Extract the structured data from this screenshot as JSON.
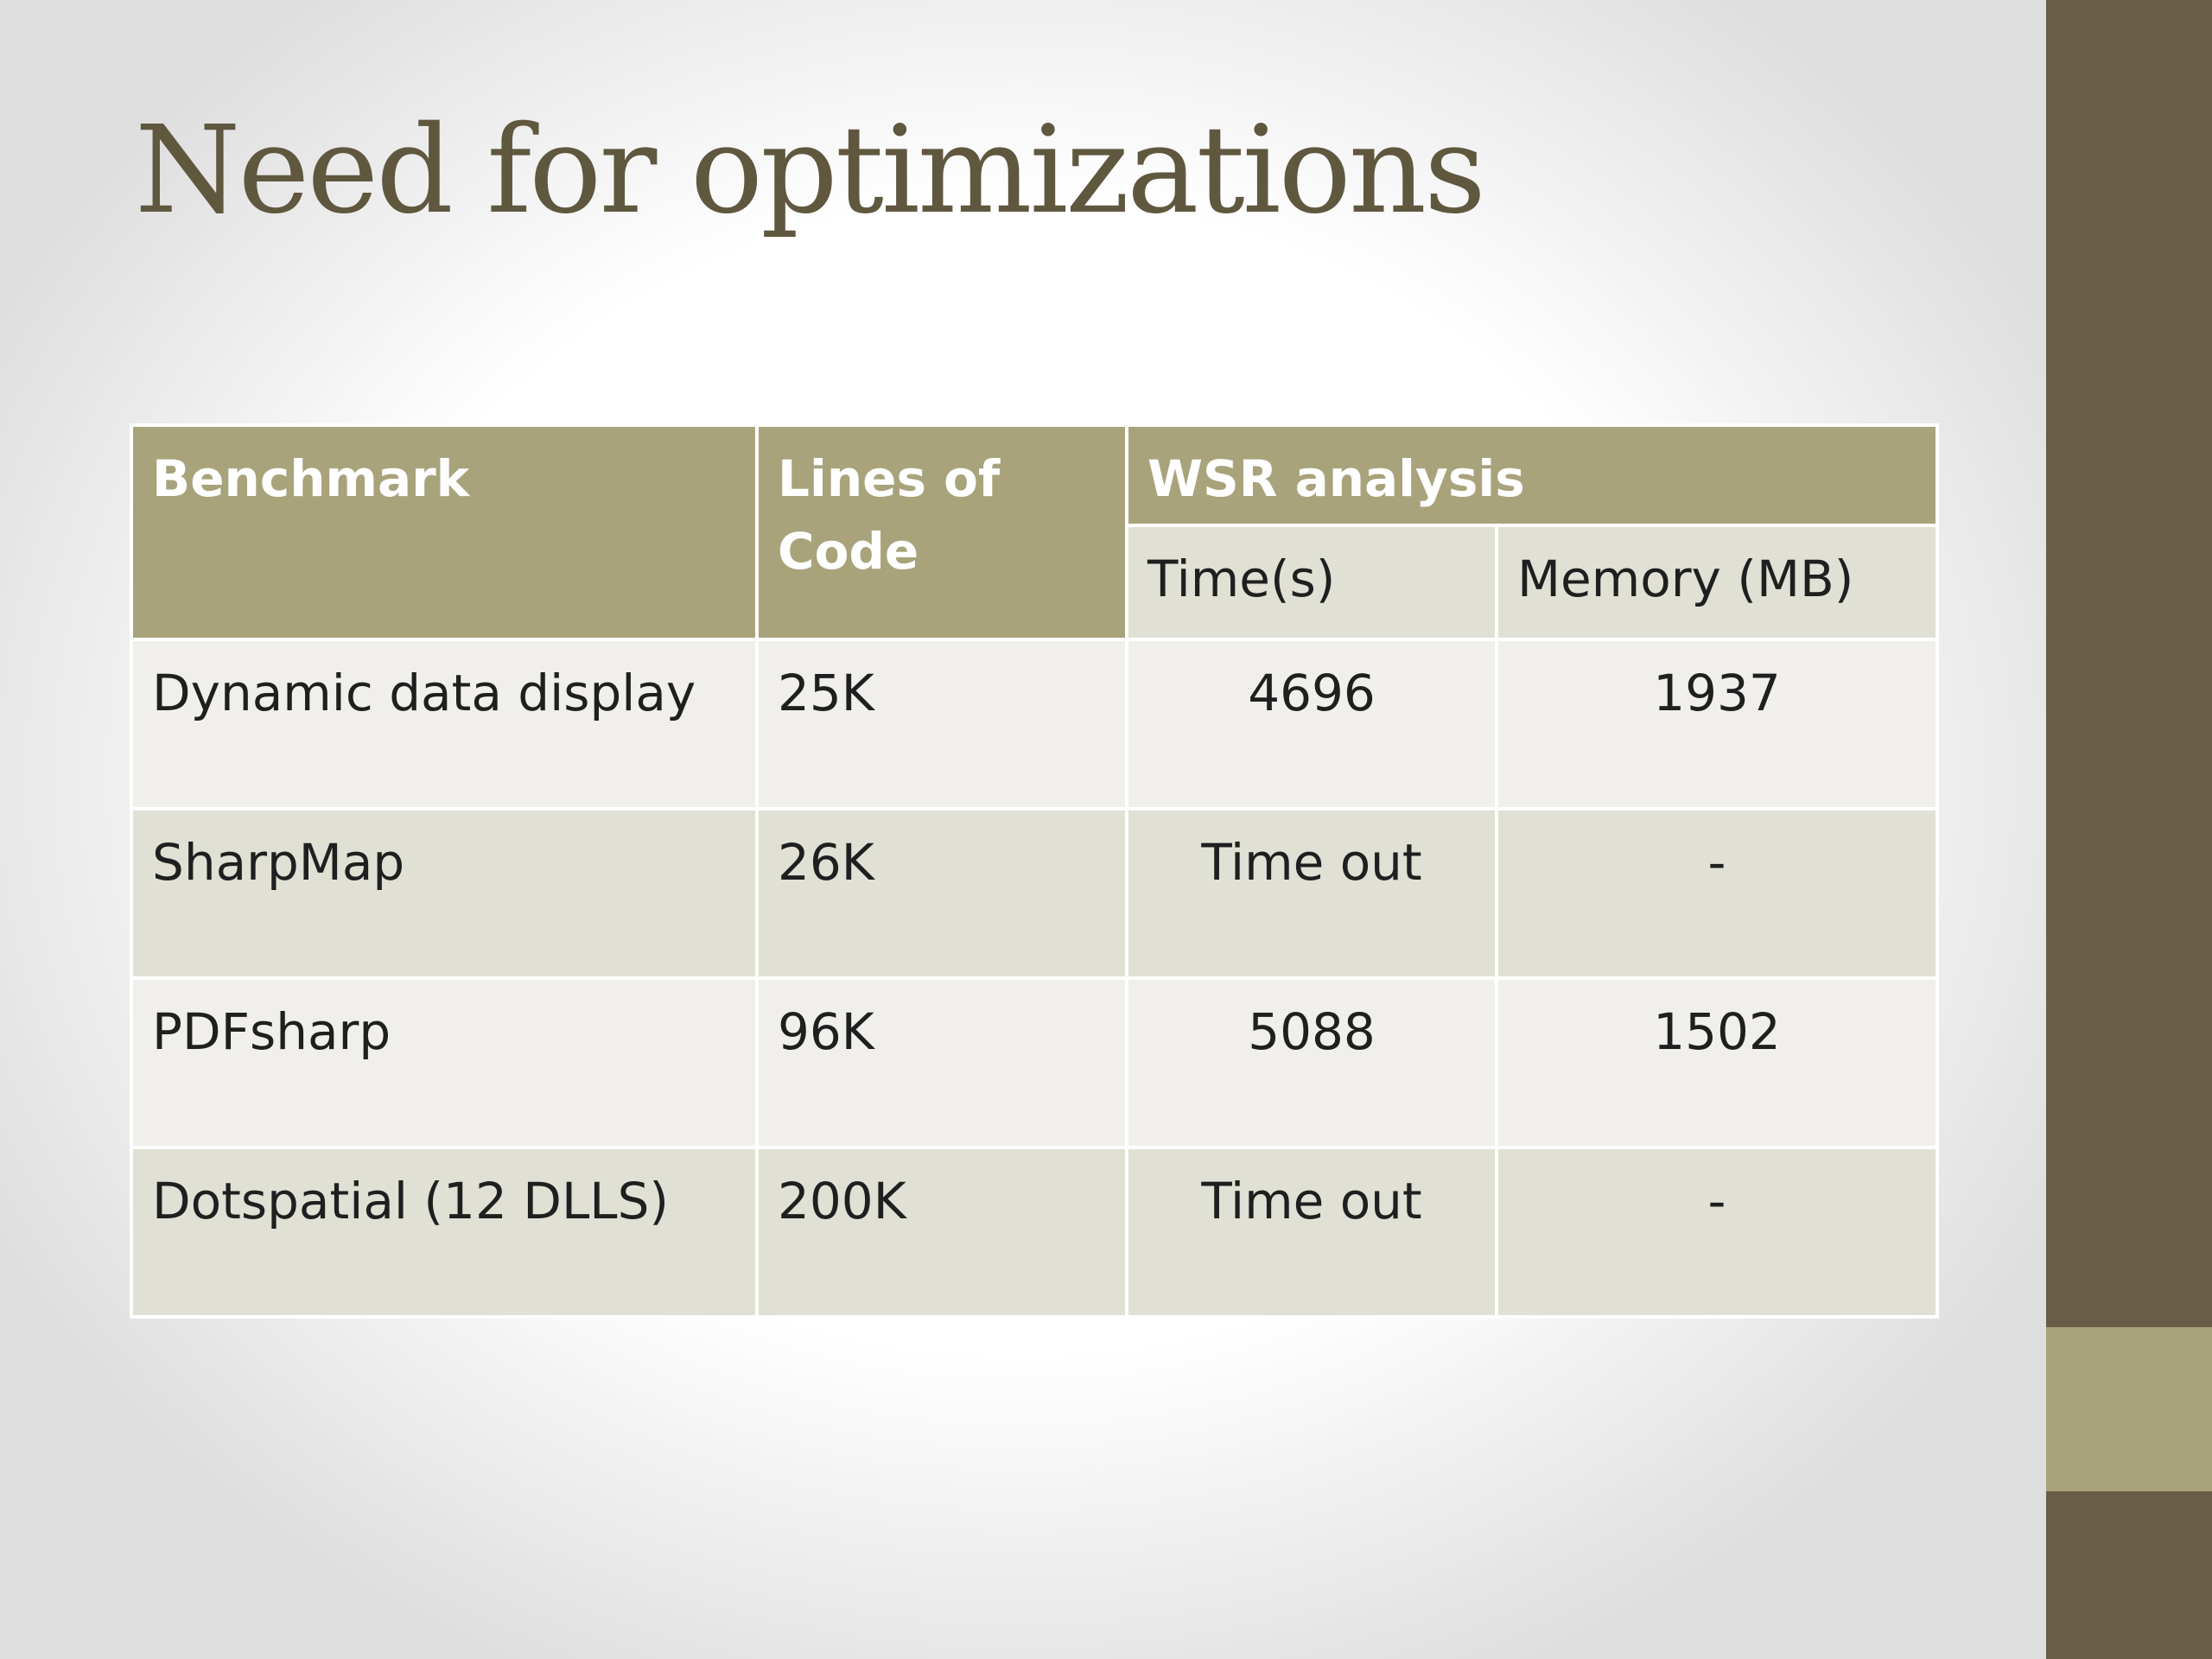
{
  "slide": {
    "title": "Need for optimizations"
  },
  "table": {
    "headers": {
      "benchmark": "Benchmark",
      "lines_of_code": "Lines of Code",
      "wsr_analysis": "WSR analysis",
      "time": "Time(s)",
      "memory": "Memory (MB)"
    },
    "rows": [
      {
        "benchmark": "Dynamic data display",
        "loc": "25K",
        "time": "4696",
        "memory": "1937"
      },
      {
        "benchmark": "SharpMap",
        "loc": "26K",
        "time": "Time out",
        "memory": "-"
      },
      {
        "benchmark": "PDFsharp",
        "loc": "96K",
        "time": "5088",
        "memory": "1502"
      },
      {
        "benchmark": "Dotspatial (12 DLLS)",
        "loc": "200K",
        "time": "Time out",
        "memory": "-"
      }
    ]
  },
  "colors": {
    "sidebar": "#685d46",
    "sidebar_accent": "#a9a37c",
    "header": "#a9a37c",
    "title": "#60573f",
    "row_light": "#f0efeb",
    "row_dark": "#e0e0d5"
  }
}
